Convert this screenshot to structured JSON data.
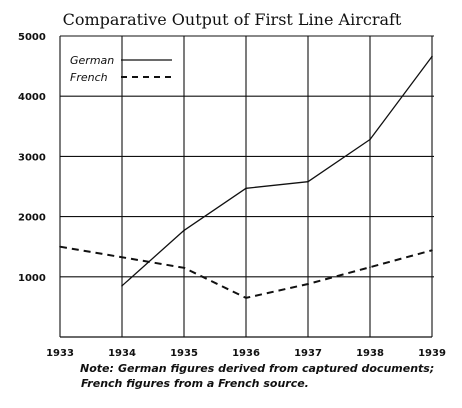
{
  "chart_data": {
    "type": "line",
    "title": "Comparative Output of First Line Aircraft",
    "xlabel": "",
    "ylabel": "",
    "x": [
      "1933",
      "1934",
      "1935",
      "1936",
      "1937",
      "1938",
      "1939"
    ],
    "ylim": [
      0,
      5000
    ],
    "yticks": [
      "5000",
      "4000",
      "3000",
      "2000",
      "1000"
    ],
    "grid": true,
    "legend_position": "top-left",
    "series": [
      {
        "name": "German",
        "style": "solid",
        "points": [
          [
            1934,
            850
          ],
          [
            1935,
            1770
          ],
          [
            1936,
            2470
          ],
          [
            1937,
            2580
          ],
          [
            1938,
            3280
          ],
          [
            1939,
            4660
          ]
        ]
      },
      {
        "name": "French",
        "style": "dashed",
        "points": [
          [
            1933,
            1500
          ],
          [
            1935,
            1150
          ],
          [
            1936,
            650
          ],
          [
            1937,
            880
          ],
          [
            1938,
            1160
          ],
          [
            1939,
            1440
          ]
        ]
      }
    ]
  },
  "note": {
    "label": "Note:",
    "line1": "German figures derived from captured documents;",
    "line2": "French figures from a French source."
  }
}
